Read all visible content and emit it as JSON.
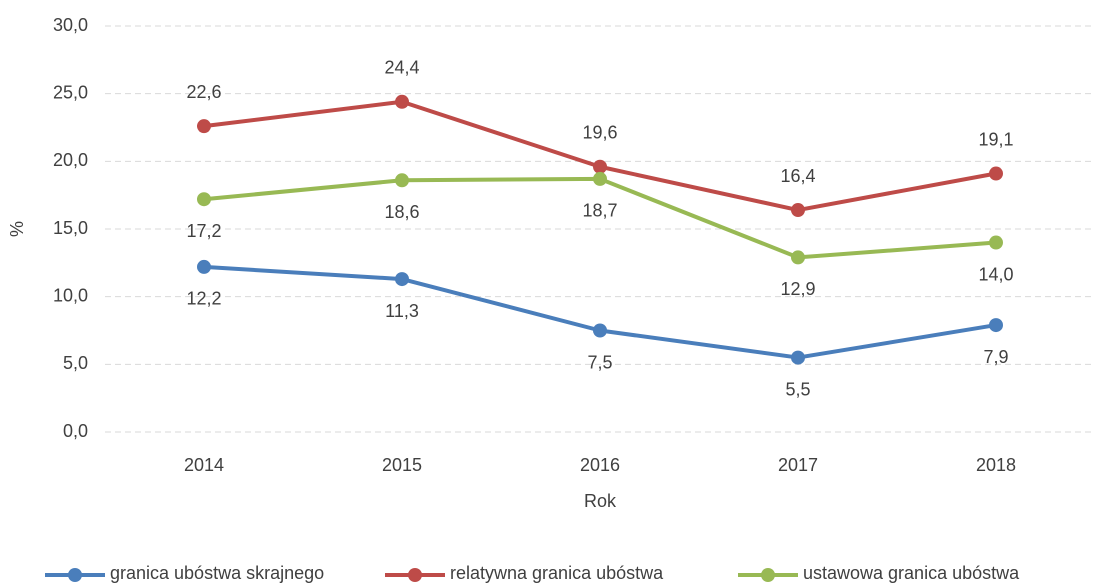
{
  "chart_data": {
    "type": "line",
    "x_label": "Rok",
    "y_label": "%",
    "categories": [
      "2014",
      "2015",
      "2016",
      "2017",
      "2018"
    ],
    "series": [
      {
        "name": "granica ubóstwa skrajnego",
        "color": "#4a7ebb",
        "values": [
          12.2,
          11.3,
          7.5,
          5.5,
          7.9
        ],
        "value_labels": [
          "12,2",
          "11,3",
          "7,5",
          "5,5",
          "7,9"
        ]
      },
      {
        "name": "relatywna granica ubóstwa",
        "color": "#be4b48",
        "values": [
          22.6,
          24.4,
          19.6,
          16.4,
          19.1
        ],
        "value_labels": [
          "22,6",
          "24,4",
          "19,6",
          "16,4",
          "19,1"
        ]
      },
      {
        "name": "ustawowa granica ubóstwa",
        "color": "#98b954",
        "values": [
          17.2,
          18.6,
          18.7,
          12.9,
          14.0
        ],
        "value_labels": [
          "17,2",
          "18,6",
          "18,7",
          "12,9",
          "14,0"
        ]
      }
    ],
    "ylim": [
      0,
      30
    ],
    "yticks": [
      {
        "value": 0,
        "label": "0,0"
      },
      {
        "value": 5,
        "label": "5,0"
      },
      {
        "value": 10,
        "label": "10,0"
      },
      {
        "value": 15,
        "label": "15,0"
      },
      {
        "value": 20,
        "label": "20,0"
      },
      {
        "value": 25,
        "label": "25,0"
      },
      {
        "value": 30,
        "label": "30,0"
      }
    ],
    "grid": true,
    "legend": "bottom"
  }
}
